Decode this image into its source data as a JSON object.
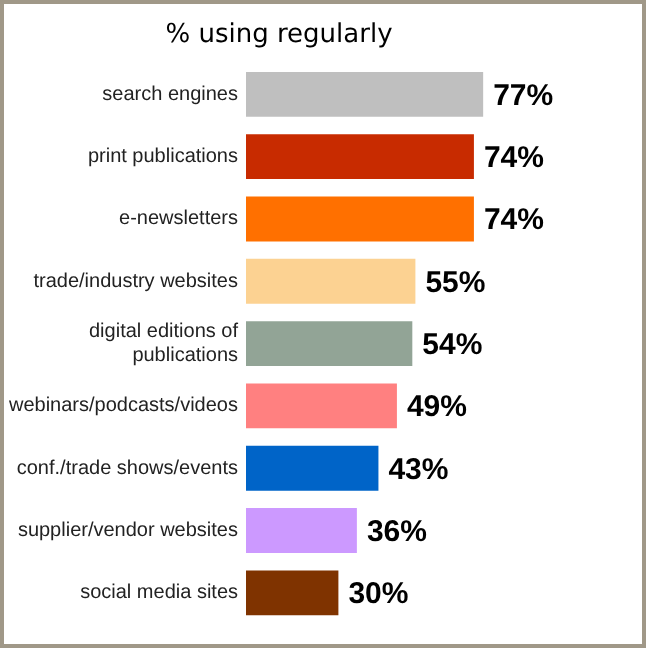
{
  "chart_data": {
    "type": "bar",
    "orientation": "horizontal",
    "title": "% using regularly",
    "categories": [
      "search engines",
      "print publications",
      "e-newsletters",
      "trade/industry websites",
      "digital editions of publications",
      "webinars/podcasts/videos",
      "conf./trade shows/events",
      "supplier/vendor websites",
      "social media sites"
    ],
    "values": [
      77,
      74,
      74,
      55,
      54,
      49,
      43,
      36,
      30
    ],
    "colors": [
      "#bfbfbf",
      "#c82b00",
      "#ff7000",
      "#fcd292",
      "#92a496",
      "#ff8080",
      "#0064c8",
      "#cc99ff",
      "#7f3300"
    ],
    "value_labels": [
      "77%",
      "74%",
      "74%",
      "55%",
      "54%",
      "49%",
      "43%",
      "36%",
      "30%"
    ],
    "tick_labels": "y",
    "grid": false,
    "legend": false
  }
}
